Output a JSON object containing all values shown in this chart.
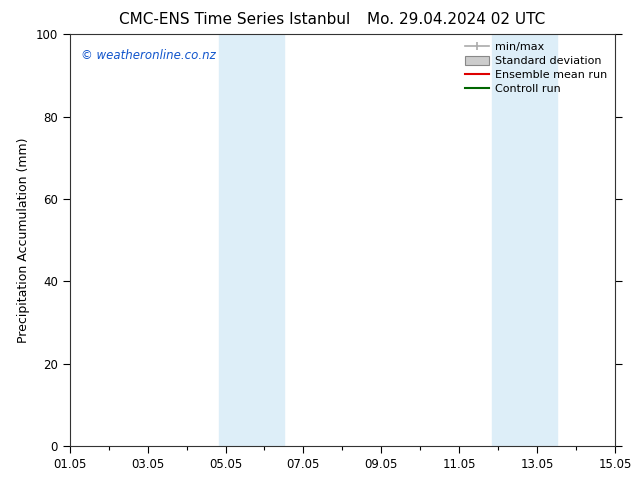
{
  "title_left": "CMC-ENS Time Series Istanbul",
  "title_right": "Mo. 29.04.2024 02 UTC",
  "ylabel": "Precipitation Accumulation (mm)",
  "ylim": [
    0,
    100
  ],
  "yticks": [
    0,
    20,
    40,
    60,
    80,
    100
  ],
  "xlim": [
    0,
    14
  ],
  "xtick_positions": [
    0,
    2,
    4,
    6,
    8,
    10,
    12,
    14
  ],
  "xtick_labels": [
    "01.05",
    "03.05",
    "05.05",
    "07.05",
    "09.05",
    "11.05",
    "13.05",
    "15.05"
  ],
  "shaded_regions": [
    {
      "xmin": 3.83,
      "xmax": 5.5,
      "color": "#ddeef8"
    },
    {
      "xmin": 10.83,
      "xmax": 12.5,
      "color": "#ddeef8"
    }
  ],
  "watermark": "© weatheronline.co.nz",
  "watermark_color": "#1155cc",
  "legend_items": [
    {
      "label": "min/max",
      "color": "#aaaaaa",
      "type": "minmax"
    },
    {
      "label": "Standard deviation",
      "color": "#cccccc",
      "type": "box"
    },
    {
      "label": "Ensemble mean run",
      "color": "#dd0000",
      "type": "line"
    },
    {
      "label": "Controll run",
      "color": "#006600",
      "type": "line"
    }
  ],
  "background_color": "#ffffff",
  "title_fontsize": 11,
  "axis_fontsize": 9,
  "tick_fontsize": 8.5,
  "legend_fontsize": 8
}
